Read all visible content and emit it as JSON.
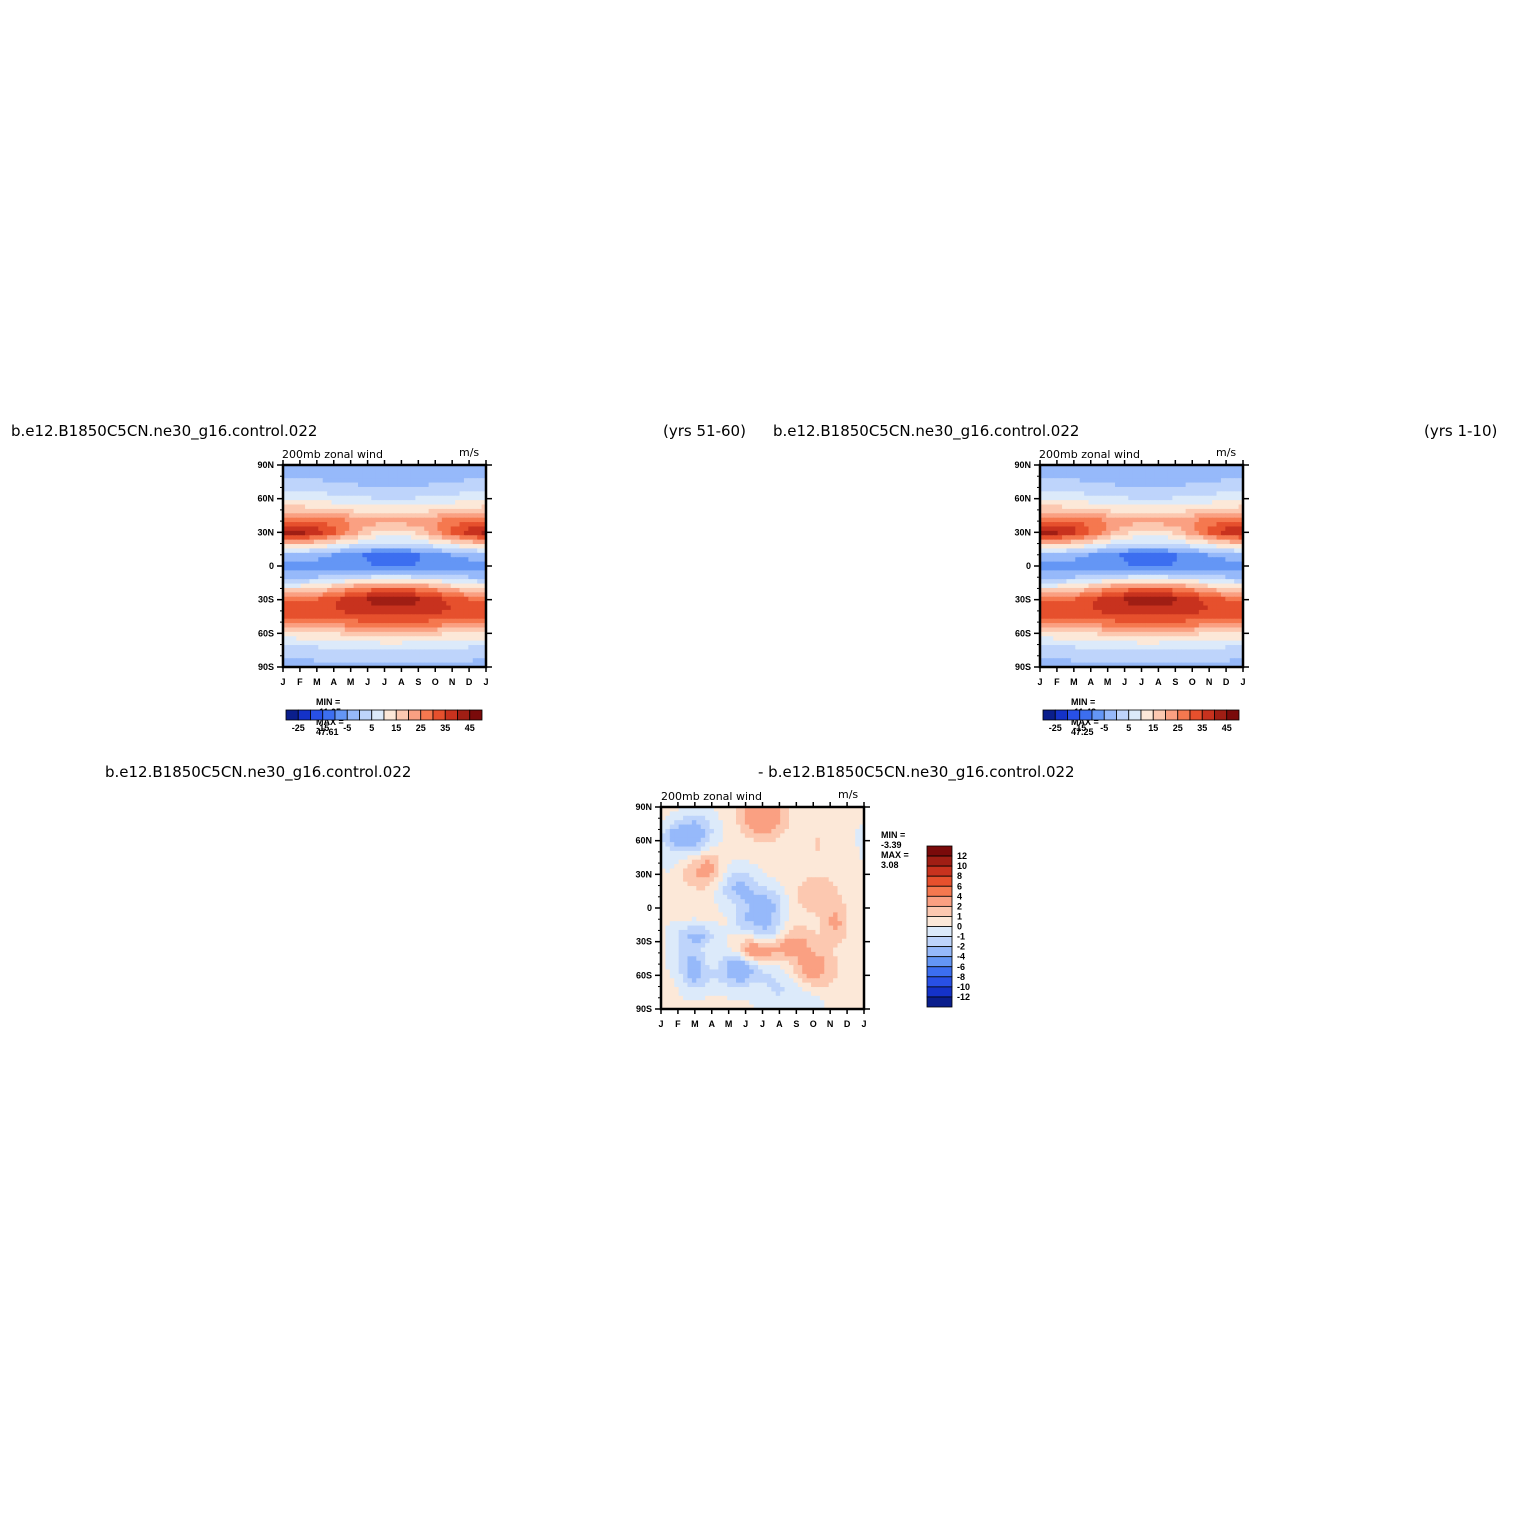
{
  "figure": {
    "panel1": {
      "case_title": "b.e12.B1850C5CN.ne30_g16.control.022",
      "years": "(yrs 51-60)",
      "field": "200mb zonal wind",
      "units": "m/s",
      "min_label": "MIN =",
      "min_value": "-11.05",
      "max_label": "MAX =",
      "max_value": "47.61"
    },
    "panel2": {
      "case_title": "b.e12.B1850C5CN.ne30_g16.control.022",
      "years": "(yrs 1-10)",
      "field": "200mb zonal wind",
      "units": "m/s",
      "min_label": "MIN =",
      "min_value": "-11.48",
      "max_label": "MAX =",
      "max_value": "47.25"
    },
    "panel3": {
      "title_left": "b.e12.B1850C5CN.ne30_g16.control.022",
      "title_right": "- b.e12.B1850C5CN.ne30_g16.control.022",
      "field": "200mb zonal wind",
      "units": "m/s",
      "min_label": "MIN =",
      "min_value": "-3.39",
      "max_label": "MAX =",
      "max_value": "3.08"
    }
  },
  "chart_data": [
    {
      "type": "heatmap",
      "title": "200mb zonal wind",
      "units": "m/s",
      "x_ticks": [
        "J",
        "F",
        "M",
        "A",
        "M",
        "J",
        "J",
        "A",
        "S",
        "O",
        "N",
        "D",
        "J"
      ],
      "y_ticks": [
        "90N",
        "60N",
        "30N",
        "0",
        "30S",
        "60S",
        "90S"
      ],
      "ylim": [
        -90,
        90
      ],
      "levels": [
        -25,
        -20,
        -15,
        -10,
        -5,
        0,
        5,
        10,
        15,
        20,
        25,
        30,
        35,
        40,
        45
      ],
      "colorbar_labels": [
        "-25",
        "-15",
        "-5",
        "5",
        "15",
        "25",
        "35",
        "45"
      ],
      "colors": [
        "#0a1e8c",
        "#1432c8",
        "#2850e6",
        "#3c6ef0",
        "#6496f5",
        "#96b9fa",
        "#bed4fb",
        "#dceafa",
        "#fce8d8",
        "#fcc8b0",
        "#faa082",
        "#f5784f",
        "#e6502d",
        "#c8321e",
        "#a01e14",
        "#7a0a0a"
      ],
      "profile_lat": [
        -90,
        -75,
        -60,
        -50,
        -40,
        -30,
        -20,
        -10,
        0,
        10,
        20,
        30,
        40,
        50,
        60,
        75,
        90
      ],
      "profile_jan": [
        -2,
        3,
        13,
        27,
        33,
        29,
        13,
        -1,
        -8,
        -1,
        18,
        43,
        31,
        18,
        8,
        1,
        -3
      ],
      "profile_jul": [
        -2,
        4,
        18,
        30,
        38,
        43,
        30,
        6,
        -10,
        -12,
        4,
        12,
        22,
        12,
        5,
        -2,
        -4
      ],
      "min": -11.05,
      "max": 47.61
    },
    {
      "type": "heatmap",
      "title": "200mb zonal wind",
      "units": "m/s",
      "x_ticks": [
        "J",
        "F",
        "M",
        "A",
        "M",
        "J",
        "J",
        "A",
        "S",
        "O",
        "N",
        "D",
        "J"
      ],
      "y_ticks": [
        "90N",
        "60N",
        "30N",
        "0",
        "30S",
        "60S",
        "90S"
      ],
      "ylim": [
        -90,
        90
      ],
      "levels": [
        -25,
        -20,
        -15,
        -10,
        -5,
        0,
        5,
        10,
        15,
        20,
        25,
        30,
        35,
        40,
        45
      ],
      "colorbar_labels": [
        "-25",
        "-15",
        "-5",
        "5",
        "15",
        "25",
        "35",
        "45"
      ],
      "colors": [
        "#0a1e8c",
        "#1432c8",
        "#2850e6",
        "#3c6ef0",
        "#6496f5",
        "#96b9fa",
        "#bed4fb",
        "#dceafa",
        "#fce8d8",
        "#fcc8b0",
        "#faa082",
        "#f5784f",
        "#e6502d",
        "#c8321e",
        "#a01e14",
        "#7a0a0a"
      ],
      "profile_lat": [
        -90,
        -75,
        -60,
        -50,
        -40,
        -30,
        -20,
        -10,
        0,
        10,
        20,
        30,
        40,
        50,
        60,
        75,
        90
      ],
      "profile_jan": [
        -2,
        3,
        13,
        27,
        33,
        29,
        13,
        -1,
        -8,
        -1,
        18,
        42,
        31,
        18,
        8,
        1,
        -3
      ],
      "profile_jul": [
        -2,
        4,
        18,
        30,
        38,
        43,
        30,
        6,
        -10,
        -12,
        4,
        12,
        22,
        12,
        5,
        -2,
        -4
      ],
      "min": -11.48,
      "max": 47.25
    },
    {
      "type": "heatmap",
      "title": "200mb zonal wind",
      "units": "m/s",
      "x_ticks": [
        "J",
        "F",
        "M",
        "A",
        "M",
        "J",
        "J",
        "A",
        "S",
        "O",
        "N",
        "D",
        "J"
      ],
      "y_ticks": [
        "90N",
        "60N",
        "30N",
        "0",
        "30S",
        "60S",
        "90S"
      ],
      "ylim": [
        -90,
        90
      ],
      "levels": [
        -12,
        -10,
        -8,
        -6,
        -4,
        -2,
        -1,
        0,
        1,
        2,
        4,
        6,
        8,
        10,
        12
      ],
      "colorbar_labels": [
        "12",
        "10",
        "8",
        "6",
        "4",
        "2",
        "1",
        "0",
        "-1",
        "-2",
        "-4",
        "-6",
        "-8",
        "-10",
        "-12"
      ],
      "colors": [
        "#0a1e8c",
        "#1432c8",
        "#2850e6",
        "#3c6ef0",
        "#6496f5",
        "#96b9fa",
        "#bed4fb",
        "#dceafa",
        "#fce8d8",
        "#fcc8b0",
        "#faa082",
        "#f5784f",
        "#e6502d",
        "#c8321e",
        "#a01e14",
        "#7a0a0a"
      ],
      "min": -3.39,
      "max": 3.08
    }
  ]
}
